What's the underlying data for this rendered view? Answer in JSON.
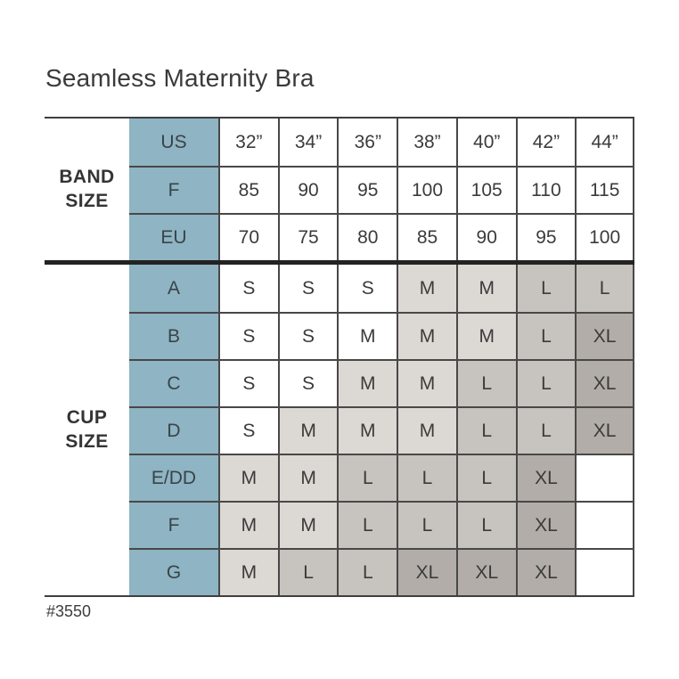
{
  "page": {
    "title": "Seamless Maternity Bra",
    "item_number": "#3550"
  },
  "colors": {
    "header_blue": "#8fb4c3",
    "shade_light": "#dcd8d3",
    "shade_mid": "#c7c3be",
    "shade_dark": "#b2ada8",
    "border": "#484848",
    "divider": "#232323",
    "text": "#3b3b3b"
  },
  "table": {
    "band_label": "BAND\nSIZE",
    "cup_label": "CUP\nSIZE",
    "band_rows": [
      {
        "label": "US",
        "values": [
          "32”",
          "34”",
          "36”",
          "38”",
          "40”",
          "42”",
          "44”"
        ]
      },
      {
        "label": "F",
        "values": [
          "85",
          "90",
          "95",
          "100",
          "105",
          "110",
          "115"
        ]
      },
      {
        "label": "EU",
        "values": [
          "70",
          "75",
          "80",
          "85",
          "90",
          "95",
          "100"
        ]
      }
    ],
    "cup_rows": [
      {
        "label": "A",
        "cells": [
          {
            "text": "S",
            "shade": "white"
          },
          {
            "text": "S",
            "shade": "white"
          },
          {
            "text": "S",
            "shade": "white"
          },
          {
            "text": "M",
            "shade": "light"
          },
          {
            "text": "M",
            "shade": "light"
          },
          {
            "text": "L",
            "shade": "mid"
          },
          {
            "text": "L",
            "shade": "mid"
          }
        ]
      },
      {
        "label": "B",
        "cells": [
          {
            "text": "S",
            "shade": "white"
          },
          {
            "text": "S",
            "shade": "white"
          },
          {
            "text": "M",
            "shade": "white"
          },
          {
            "text": "M",
            "shade": "light"
          },
          {
            "text": "M",
            "shade": "light"
          },
          {
            "text": "L",
            "shade": "mid"
          },
          {
            "text": "XL",
            "shade": "dark"
          }
        ]
      },
      {
        "label": "C",
        "cells": [
          {
            "text": "S",
            "shade": "white"
          },
          {
            "text": "S",
            "shade": "white"
          },
          {
            "text": "M",
            "shade": "light"
          },
          {
            "text": "M",
            "shade": "light"
          },
          {
            "text": "L",
            "shade": "mid"
          },
          {
            "text": "L",
            "shade": "mid"
          },
          {
            "text": "XL",
            "shade": "dark"
          }
        ]
      },
      {
        "label": "D",
        "cells": [
          {
            "text": "S",
            "shade": "white"
          },
          {
            "text": "M",
            "shade": "light"
          },
          {
            "text": "M",
            "shade": "light"
          },
          {
            "text": "M",
            "shade": "light"
          },
          {
            "text": "L",
            "shade": "mid"
          },
          {
            "text": "L",
            "shade": "mid"
          },
          {
            "text": "XL",
            "shade": "dark"
          }
        ]
      },
      {
        "label": "E/DD",
        "cells": [
          {
            "text": "M",
            "shade": "light"
          },
          {
            "text": "M",
            "shade": "light"
          },
          {
            "text": "L",
            "shade": "mid"
          },
          {
            "text": "L",
            "shade": "mid"
          },
          {
            "text": "L",
            "shade": "mid"
          },
          {
            "text": "XL",
            "shade": "dark"
          },
          {
            "text": "",
            "shade": "white"
          }
        ]
      },
      {
        "label": "F",
        "cells": [
          {
            "text": "M",
            "shade": "light"
          },
          {
            "text": "M",
            "shade": "light"
          },
          {
            "text": "L",
            "shade": "mid"
          },
          {
            "text": "L",
            "shade": "mid"
          },
          {
            "text": "L",
            "shade": "mid"
          },
          {
            "text": "XL",
            "shade": "dark"
          },
          {
            "text": "",
            "shade": "white"
          }
        ]
      },
      {
        "label": "G",
        "cells": [
          {
            "text": "M",
            "shade": "light"
          },
          {
            "text": "L",
            "shade": "mid"
          },
          {
            "text": "L",
            "shade": "mid"
          },
          {
            "text": "XL",
            "shade": "dark"
          },
          {
            "text": "XL",
            "shade": "dark"
          },
          {
            "text": "XL",
            "shade": "dark"
          },
          {
            "text": "",
            "shade": "white"
          }
        ]
      }
    ]
  },
  "chart_data": {
    "type": "table",
    "title": "Seamless Maternity Bra",
    "sections": [
      {
        "name": "BAND SIZE",
        "rows": [
          {
            "label": "US",
            "values": [
              "32”",
              "34”",
              "36”",
              "38”",
              "40”",
              "42”",
              "44”"
            ]
          },
          {
            "label": "F",
            "values": [
              85,
              90,
              95,
              100,
              105,
              110,
              115
            ]
          },
          {
            "label": "EU",
            "values": [
              70,
              75,
              80,
              85,
              90,
              95,
              100
            ]
          }
        ]
      },
      {
        "name": "CUP SIZE",
        "rows": [
          {
            "label": "A",
            "values": [
              "S",
              "S",
              "S",
              "M",
              "M",
              "L",
              "L"
            ]
          },
          {
            "label": "B",
            "values": [
              "S",
              "S",
              "M",
              "M",
              "M",
              "L",
              "XL"
            ]
          },
          {
            "label": "C",
            "values": [
              "S",
              "S",
              "M",
              "M",
              "L",
              "L",
              "XL"
            ]
          },
          {
            "label": "D",
            "values": [
              "S",
              "M",
              "M",
              "M",
              "L",
              "L",
              "XL"
            ]
          },
          {
            "label": "E/DD",
            "values": [
              "M",
              "M",
              "L",
              "L",
              "L",
              "XL",
              ""
            ]
          },
          {
            "label": "F",
            "values": [
              "M",
              "M",
              "L",
              "L",
              "L",
              "XL",
              ""
            ]
          },
          {
            "label": "G",
            "values": [
              "M",
              "L",
              "L",
              "XL",
              "XL",
              "XL",
              ""
            ]
          }
        ]
      }
    ],
    "annotation": "#3550"
  }
}
